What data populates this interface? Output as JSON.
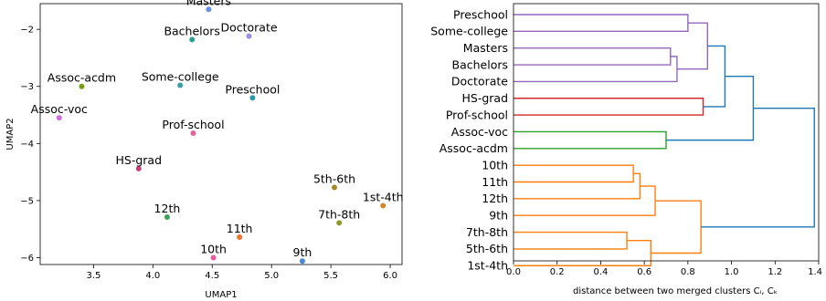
{
  "chart_data": [
    {
      "type": "scatter",
      "xlabel": "UMAP1",
      "ylabel": "UMAP2",
      "xlim": [
        3.05,
        6.1
      ],
      "ylim": [
        -6.12,
        -1.55
      ],
      "xticks": [
        "3.5",
        "4.0",
        "4.5",
        "5.0",
        "5.5",
        "6.0"
      ],
      "yticks": [
        "−2",
        "−3",
        "−4",
        "−5",
        "−6"
      ],
      "points": [
        {
          "label": "Masters",
          "x": 4.47,
          "y": -1.65,
          "color": "#6b8fe8"
        },
        {
          "label": "Bachelors",
          "x": 4.33,
          "y": -2.18,
          "color": "#2aa198"
        },
        {
          "label": "Doctorate",
          "x": 4.81,
          "y": -2.12,
          "color": "#9b8fe0"
        },
        {
          "label": "Assoc-acdm",
          "x": 3.4,
          "y": -3.0,
          "color": "#7a9a1a"
        },
        {
          "label": "Some-college",
          "x": 4.23,
          "y": -2.98,
          "color": "#3aa0a8"
        },
        {
          "label": "Preschool",
          "x": 4.84,
          "y": -3.2,
          "color": "#2a9aa8"
        },
        {
          "label": "Assoc-voc",
          "x": 3.21,
          "y": -3.55,
          "color": "#d26ce0"
        },
        {
          "label": "Prof-school",
          "x": 4.34,
          "y": -3.82,
          "color": "#e8609a"
        },
        {
          "label": "HS-grad",
          "x": 3.88,
          "y": -4.44,
          "color": "#c8407a"
        },
        {
          "label": "5th-6th",
          "x": 5.53,
          "y": -4.77,
          "color": "#a88a22"
        },
        {
          "label": "1st-4th",
          "x": 5.94,
          "y": -5.09,
          "color": "#d6862a"
        },
        {
          "label": "12th",
          "x": 4.12,
          "y": -5.29,
          "color": "#3aa05a"
        },
        {
          "label": "7th-8th",
          "x": 5.57,
          "y": -5.39,
          "color": "#8a9a22"
        },
        {
          "label": "11th",
          "x": 4.73,
          "y": -5.64,
          "color": "#e8762a"
        },
        {
          "label": "10th",
          "x": 4.51,
          "y": -6.0,
          "color": "#e85a9a"
        },
        {
          "label": "9th",
          "x": 5.26,
          "y": -6.06,
          "color": "#4a8ad2"
        }
      ]
    },
    {
      "type": "dendrogram",
      "xlabel": "distance between two merged clusters Cᵢ, Cₖ",
      "xlim": [
        0,
        1.4
      ],
      "xticks": [
        "0.0",
        "0.2",
        "0.4",
        "0.6",
        "0.8",
        "1.0",
        "1.2",
        "1.4"
      ],
      "leaves": [
        "Preschool",
        "Some-college",
        "Masters",
        "Bachelors",
        "Doctorate",
        "HS-grad",
        "Prof-school",
        "Assoc-voc",
        "Assoc-acdm",
        "10th",
        "11th",
        "12th",
        "9th",
        "7th-8th",
        "5th-6th",
        "1st-4th"
      ],
      "merges": [
        {
          "a": "Preschool",
          "b": "Some-college",
          "height": 0.8,
          "color": "#9467bd"
        },
        {
          "a": "Masters",
          "b": "Bachelors",
          "height": 0.72,
          "color": "#9467bd"
        },
        {
          "a": "m2",
          "b": "Doctorate",
          "height": 0.75,
          "color": "#9467bd"
        },
        {
          "a": "m1",
          "b": "m3",
          "height": 0.89,
          "color": "#9467bd"
        },
        {
          "a": "HS-grad",
          "b": "Prof-school",
          "height": 0.87,
          "color": "#d62728"
        },
        {
          "a": "m4",
          "b": "m5",
          "height": 0.97,
          "color": "#1f77b4"
        },
        {
          "a": "Assoc-voc",
          "b": "Assoc-acdm",
          "height": 0.7,
          "color": "#2ca02c"
        },
        {
          "a": "m6",
          "b": "m7",
          "height": 1.1,
          "color": "#1f77b4"
        },
        {
          "a": "10th",
          "b": "11th",
          "height": 0.55,
          "color": "#ff7f0e"
        },
        {
          "a": "m9",
          "b": "12th",
          "height": 0.58,
          "color": "#ff7f0e"
        },
        {
          "a": "m10",
          "b": "9th",
          "height": 0.65,
          "color": "#ff7f0e"
        },
        {
          "a": "7th-8th",
          "b": "5th-6th",
          "height": 0.52,
          "color": "#ff7f0e"
        },
        {
          "a": "m12",
          "b": "1st-4th",
          "height": 0.63,
          "color": "#ff7f0e"
        },
        {
          "a": "m11",
          "b": "m13",
          "height": 0.86,
          "color": "#ff7f0e"
        },
        {
          "a": "m8",
          "b": "m14",
          "height": 1.38,
          "color": "#1f77b4"
        }
      ]
    }
  ]
}
